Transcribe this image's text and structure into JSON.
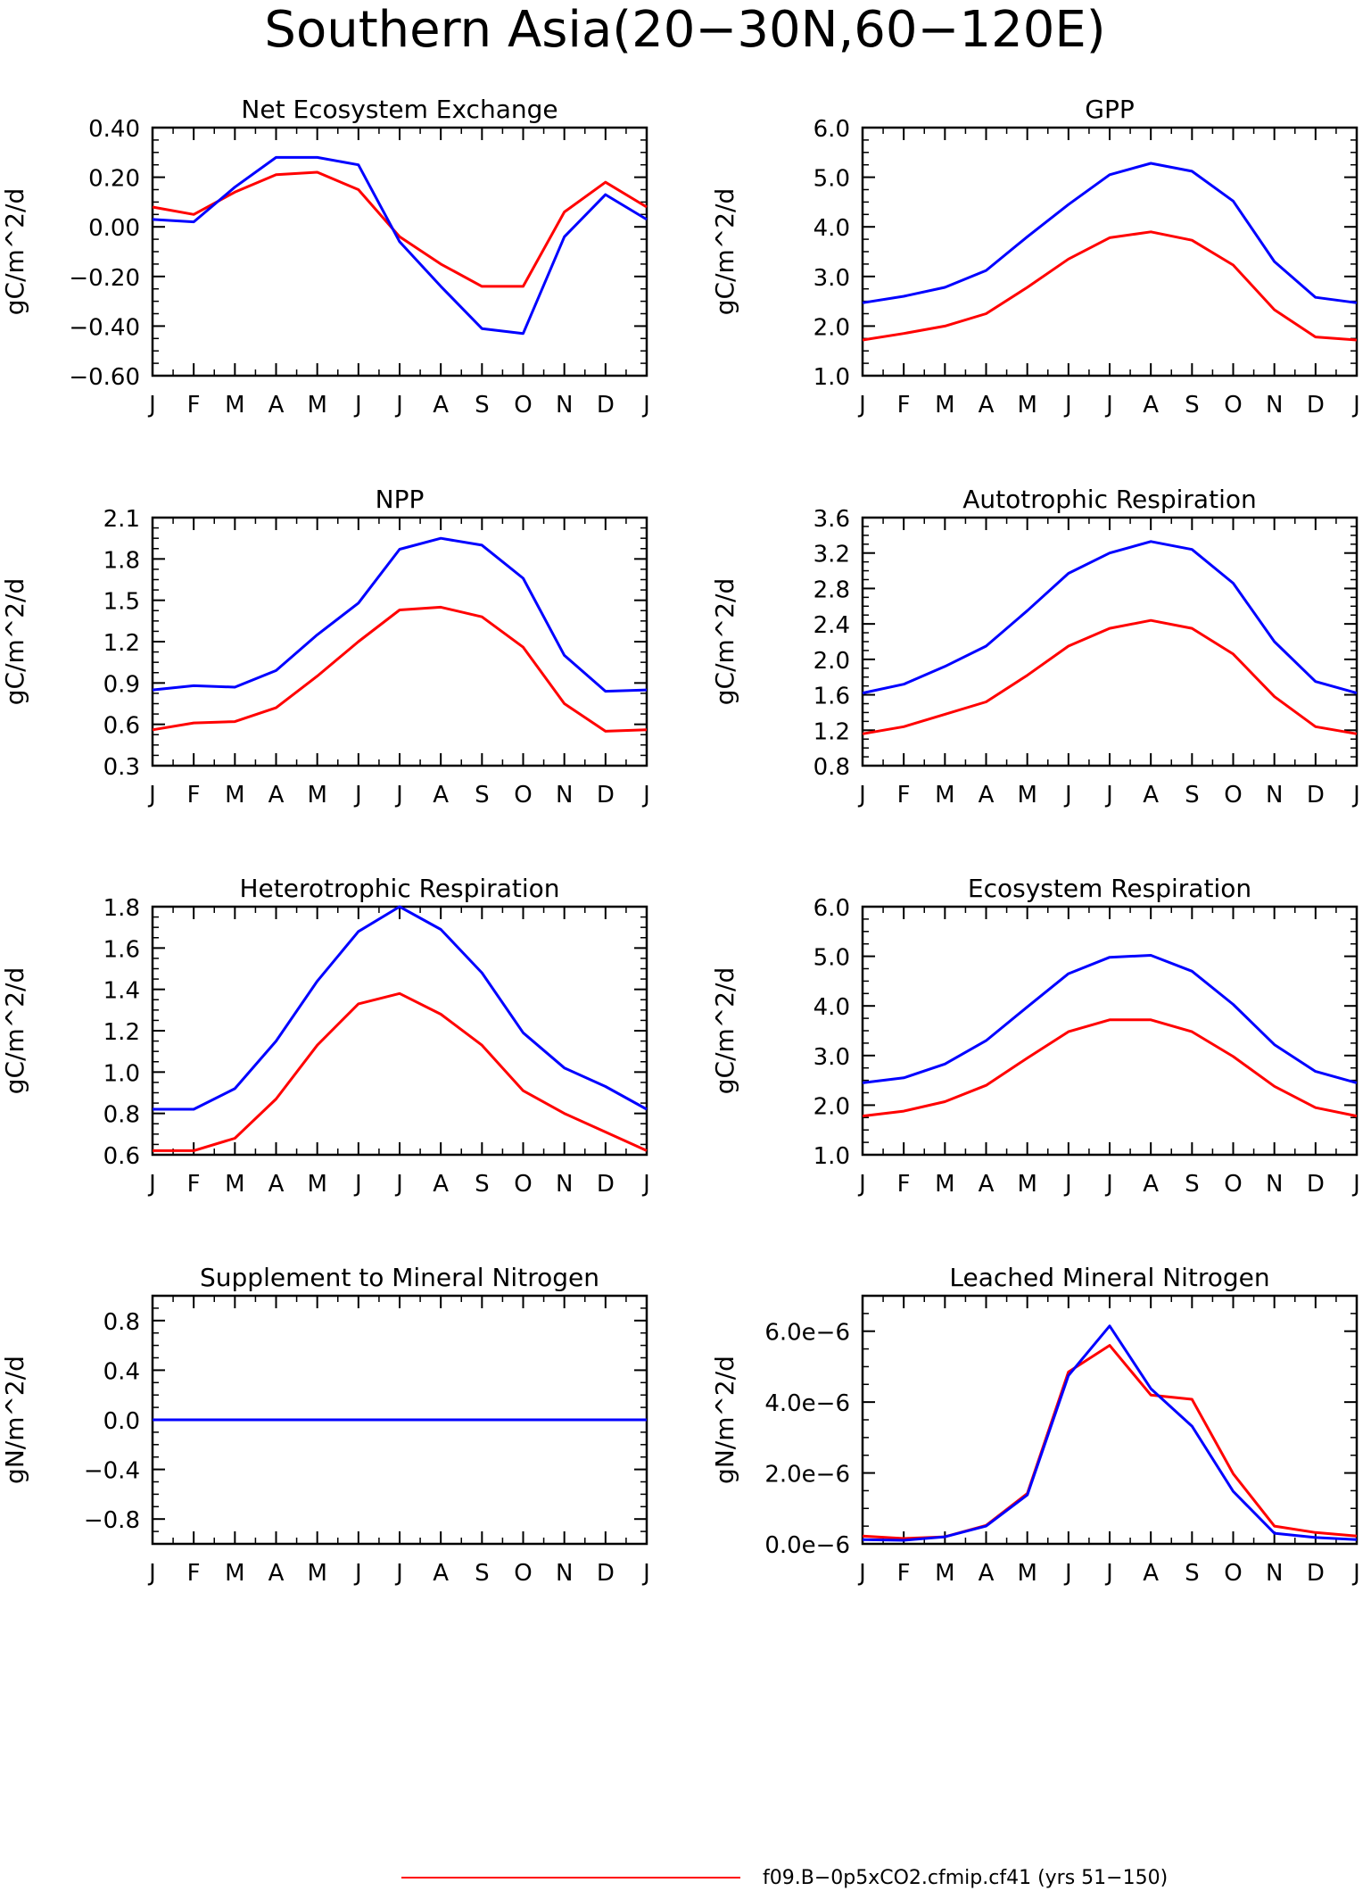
{
  "figure": {
    "title": "Southern Asia(20−30N,60−120E)",
    "legend_label": "f09.B−0p5xCO2.cfmip.cf41 (yrs 51−150)",
    "series_colors": {
      "red": "#ff0000",
      "blue": "#0000ff"
    }
  },
  "chart_data": [
    {
      "type": "line",
      "title": "Net Ecosystem Exchange",
      "ylabel": "gC/m^2/d",
      "categories": [
        "J",
        "F",
        "M",
        "A",
        "M",
        "J",
        "J",
        "A",
        "S",
        "O",
        "N",
        "D",
        "J"
      ],
      "ylim": [
        -0.6,
        0.4
      ],
      "yticks": [
        0.4,
        0.2,
        0.0,
        -0.2,
        -0.4,
        -0.6
      ],
      "ytick_labels": [
        "0.40",
        "0.20",
        "0.00",
        "−0.20",
        "−0.40",
        "−0.60"
      ],
      "series": [
        {
          "color": "#ff0000",
          "values": [
            0.08,
            0.05,
            0.14,
            0.21,
            0.22,
            0.15,
            -0.04,
            -0.15,
            -0.24,
            -0.24,
            0.06,
            0.18,
            0.08
          ]
        },
        {
          "color": "#0000ff",
          "values": [
            0.03,
            0.02,
            0.16,
            0.28,
            0.28,
            0.25,
            -0.06,
            -0.24,
            -0.41,
            -0.43,
            -0.04,
            0.13,
            0.03
          ]
        }
      ]
    },
    {
      "type": "line",
      "title": "GPP",
      "ylabel": "gC/m^2/d",
      "categories": [
        "J",
        "F",
        "M",
        "A",
        "M",
        "J",
        "J",
        "A",
        "S",
        "O",
        "N",
        "D",
        "J"
      ],
      "ylim": [
        1.0,
        6.0
      ],
      "yticks": [
        6.0,
        5.0,
        4.0,
        3.0,
        2.0,
        1.0
      ],
      "ytick_labels": [
        "6.0",
        "5.0",
        "4.0",
        "3.0",
        "2.0",
        "1.0"
      ],
      "series": [
        {
          "color": "#ff0000",
          "values": [
            1.72,
            1.85,
            2.0,
            2.25,
            2.78,
            3.35,
            3.78,
            3.9,
            3.73,
            3.23,
            2.33,
            1.78,
            1.72
          ]
        },
        {
          "color": "#0000ff",
          "values": [
            2.47,
            2.6,
            2.78,
            3.12,
            3.8,
            4.45,
            5.05,
            5.28,
            5.12,
            4.52,
            3.3,
            2.58,
            2.47
          ]
        }
      ]
    },
    {
      "type": "line",
      "title": "NPP",
      "ylabel": "gC/m^2/d",
      "categories": [
        "J",
        "F",
        "M",
        "A",
        "M",
        "J",
        "J",
        "A",
        "S",
        "O",
        "N",
        "D",
        "J"
      ],
      "ylim": [
        0.3,
        2.1
      ],
      "yticks": [
        2.1,
        1.8,
        1.5,
        1.2,
        0.9,
        0.6,
        0.3
      ],
      "ytick_labels": [
        "2.1",
        "1.8",
        "1.5",
        "1.2",
        "0.9",
        "0.6",
        "0.3"
      ],
      "series": [
        {
          "color": "#ff0000",
          "values": [
            0.56,
            0.61,
            0.62,
            0.72,
            0.95,
            1.2,
            1.43,
            1.45,
            1.38,
            1.16,
            0.75,
            0.55,
            0.56
          ]
        },
        {
          "color": "#0000ff",
          "values": [
            0.85,
            0.88,
            0.87,
            0.99,
            1.25,
            1.48,
            1.87,
            1.95,
            1.9,
            1.66,
            1.1,
            0.84,
            0.85
          ]
        }
      ]
    },
    {
      "type": "line",
      "title": "Autotrophic Respiration",
      "ylabel": "gC/m^2/d",
      "categories": [
        "J",
        "F",
        "M",
        "A",
        "M",
        "J",
        "J",
        "A",
        "S",
        "O",
        "N",
        "D",
        "J"
      ],
      "ylim": [
        0.8,
        3.6
      ],
      "yticks": [
        3.6,
        3.2,
        2.8,
        2.4,
        2.0,
        1.6,
        1.2,
        0.8
      ],
      "ytick_labels": [
        "3.6",
        "3.2",
        "2.8",
        "2.4",
        "2.0",
        "1.6",
        "1.2",
        "0.8"
      ],
      "series": [
        {
          "color": "#ff0000",
          "values": [
            1.16,
            1.24,
            1.38,
            1.52,
            1.82,
            2.15,
            2.35,
            2.44,
            2.35,
            2.06,
            1.58,
            1.24,
            1.16
          ]
        },
        {
          "color": "#0000ff",
          "values": [
            1.62,
            1.72,
            1.92,
            2.15,
            2.55,
            2.97,
            3.2,
            3.33,
            3.24,
            2.86,
            2.2,
            1.75,
            1.62
          ]
        }
      ]
    },
    {
      "type": "line",
      "title": "Heterotrophic Respiration",
      "ylabel": "gC/m^2/d",
      "categories": [
        "J",
        "F",
        "M",
        "A",
        "M",
        "J",
        "J",
        "A",
        "S",
        "O",
        "N",
        "D",
        "J"
      ],
      "ylim": [
        0.6,
        1.8
      ],
      "yticks": [
        1.8,
        1.6,
        1.4,
        1.2,
        1.0,
        0.8,
        0.6
      ],
      "ytick_labels": [
        "1.8",
        "1.6",
        "1.4",
        "1.2",
        "1.0",
        "0.8",
        "0.6"
      ],
      "series": [
        {
          "color": "#ff0000",
          "values": [
            0.62,
            0.62,
            0.68,
            0.87,
            1.13,
            1.33,
            1.38,
            1.28,
            1.13,
            0.91,
            0.8,
            0.71,
            0.62
          ]
        },
        {
          "color": "#0000ff",
          "values": [
            0.82,
            0.82,
            0.92,
            1.15,
            1.44,
            1.68,
            1.8,
            1.69,
            1.48,
            1.19,
            1.02,
            0.93,
            0.82
          ]
        }
      ]
    },
    {
      "type": "line",
      "title": "Ecosystem Respiration",
      "ylabel": "gC/m^2/d",
      "categories": [
        "J",
        "F",
        "M",
        "A",
        "M",
        "J",
        "J",
        "A",
        "S",
        "O",
        "N",
        "D",
        "J"
      ],
      "ylim": [
        1.0,
        6.0
      ],
      "yticks": [
        6.0,
        5.0,
        4.0,
        3.0,
        2.0,
        1.0
      ],
      "ytick_labels": [
        "6.0",
        "5.0",
        "4.0",
        "3.0",
        "2.0",
        "1.0"
      ],
      "series": [
        {
          "color": "#ff0000",
          "values": [
            1.78,
            1.88,
            2.07,
            2.4,
            2.95,
            3.48,
            3.72,
            3.72,
            3.48,
            2.98,
            2.38,
            1.95,
            1.78
          ]
        },
        {
          "color": "#0000ff",
          "values": [
            2.45,
            2.55,
            2.83,
            3.3,
            3.98,
            4.65,
            4.98,
            5.02,
            4.7,
            4.03,
            3.22,
            2.68,
            2.45
          ]
        }
      ]
    },
    {
      "type": "line",
      "title": "Supplement to Mineral Nitrogen",
      "ylabel": "gN/m^2/d",
      "categories": [
        "J",
        "F",
        "M",
        "A",
        "M",
        "J",
        "J",
        "A",
        "S",
        "O",
        "N",
        "D",
        "J"
      ],
      "ylim": [
        -1.0,
        1.0
      ],
      "yticks": [
        0.8,
        0.4,
        0.0,
        -0.4,
        -0.8
      ],
      "ytick_labels": [
        "0.8",
        "0.4",
        "0.0",
        "−0.4",
        "−0.8"
      ],
      "series": [
        {
          "color": "#ff0000",
          "values": [
            0,
            0,
            0,
            0,
            0,
            0,
            0,
            0,
            0,
            0,
            0,
            0,
            0
          ]
        },
        {
          "color": "#0000ff",
          "values": [
            0,
            0,
            0,
            0,
            0,
            0,
            0,
            0,
            0,
            0,
            0,
            0,
            0
          ]
        }
      ]
    },
    {
      "type": "line",
      "title": "Leached Mineral Nitrogen",
      "ylabel": "gN/m^2/d",
      "categories": [
        "J",
        "F",
        "M",
        "A",
        "M",
        "J",
        "J",
        "A",
        "S",
        "O",
        "N",
        "D",
        "J"
      ],
      "ylim": [
        0.0,
        7e-06
      ],
      "yticks": [
        6e-06,
        4e-06,
        2e-06,
        0.0
      ],
      "ytick_labels": [
        "6.0e−6",
        "4.0e−6",
        "2.0e−6",
        "0.0e−6"
      ],
      "series": [
        {
          "color": "#ff0000",
          "values": [
            2.2e-07,
            1.5e-07,
            2e-07,
            5.2e-07,
            1.42e-06,
            4.85e-06,
            5.6e-06,
            4.2e-06,
            4.08e-06,
            1.98e-06,
            5e-07,
            3.2e-07,
            2.2e-07
          ]
        },
        {
          "color": "#0000ff",
          "values": [
            1.2e-07,
            1e-07,
            2e-07,
            5e-07,
            1.38e-06,
            4.75e-06,
            6.15e-06,
            4.38e-06,
            3.32e-06,
            1.48e-06,
            3e-07,
            1.8e-07,
            1.2e-07
          ]
        }
      ]
    }
  ]
}
